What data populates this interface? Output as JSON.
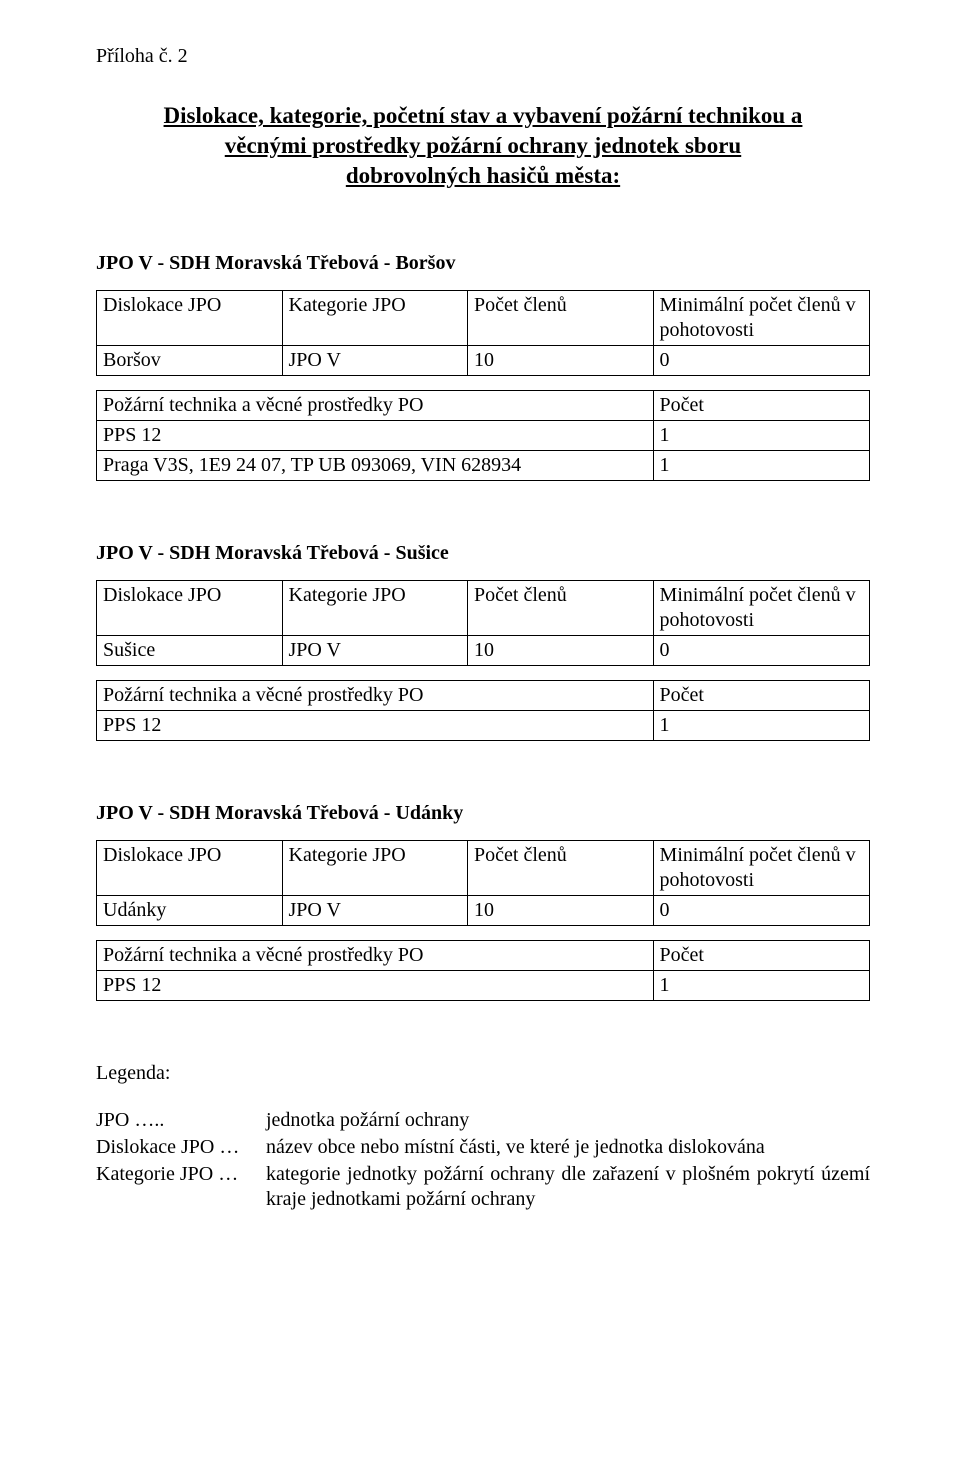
{
  "annex": "Příloha č. 2",
  "title_lines": [
    "Dislokace, kategorie, početní stav a vybavení požární technikou a",
    "věcnými prostředky požární ochrany jednotek sboru",
    "dobrovolných hasičů města:"
  ],
  "table4_headers": {
    "c1": "Dislokace JPO",
    "c2": "Kategorie JPO",
    "c3": "Počet členů",
    "c4": "Minimální počet členů v pohotovosti"
  },
  "table2_headers": {
    "c1": "Požární technika a věcné prostředky PO",
    "c2": "Počet"
  },
  "sections": [
    {
      "heading": "JPO V - SDH Moravská Třebová - Boršov",
      "unit_row": {
        "c1": "Boršov",
        "c2": "JPO V",
        "c3": "10",
        "c4": "0"
      },
      "equip_rows": [
        {
          "c1": "PPS 12",
          "c2": "1"
        },
        {
          "c1": "Praga V3S, 1E9 24 07, TP UB 093069, VIN 628934",
          "c2": "1"
        }
      ]
    },
    {
      "heading": "JPO V - SDH Moravská Třebová - Sušice",
      "unit_row": {
        "c1": "Sušice",
        "c2": "JPO V",
        "c3": "10",
        "c4": "0"
      },
      "equip_rows": [
        {
          "c1": "PPS 12",
          "c2": "1"
        }
      ]
    },
    {
      "heading": "JPO V - SDH Moravská Třebová - Udánky",
      "unit_row": {
        "c1": "Udánky",
        "c2": "JPO V",
        "c3": "10",
        "c4": "0"
      },
      "equip_rows": [
        {
          "c1": "PPS 12",
          "c2": "1"
        }
      ]
    }
  ],
  "legend": {
    "title": "Legenda:",
    "items": [
      {
        "term": "JPO …..",
        "def": "jednotka požární ochrany"
      },
      {
        "term": "Dislokace JPO …",
        "def": "název obce nebo místní části, ve které je jednotka dislokována"
      },
      {
        "term": "Kategorie JPO …",
        "def": "kategorie jednotky požární ochrany dle zařazení v plošném pokrytí území kraje jednotkami požární ochrany"
      }
    ]
  }
}
